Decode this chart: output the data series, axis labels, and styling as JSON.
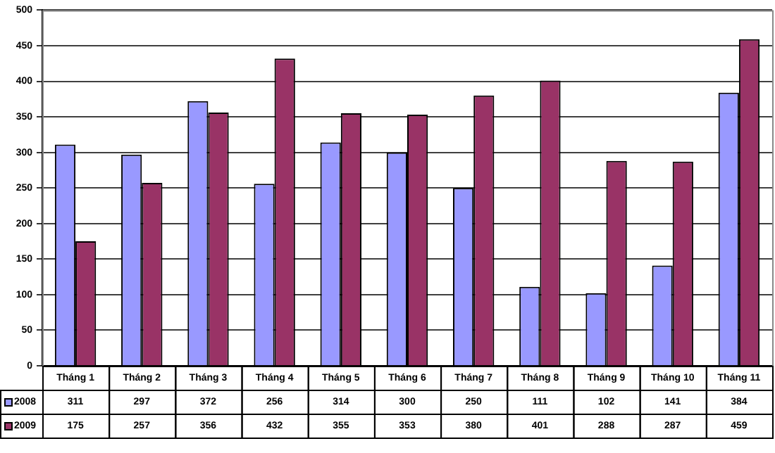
{
  "chart_data": {
    "type": "bar",
    "categories": [
      "Tháng 1",
      "Tháng 2",
      "Tháng 3",
      "Tháng 4",
      "Tháng 5",
      "Tháng 6",
      "Tháng 7",
      "Tháng 8",
      "Tháng 9",
      "Tháng 10",
      "Tháng 11"
    ],
    "series": [
      {
        "name": "2008",
        "color": "#9999ff",
        "values": [
          311,
          297,
          372,
          256,
          314,
          300,
          250,
          111,
          102,
          141,
          384
        ]
      },
      {
        "name": "2009",
        "color": "#993366",
        "values": [
          175,
          257,
          356,
          432,
          355,
          353,
          380,
          401,
          288,
          287,
          459
        ]
      }
    ],
    "ylim": [
      0,
      500
    ],
    "yticks": [
      0,
      50,
      100,
      150,
      200,
      250,
      300,
      350,
      400,
      450,
      500
    ],
    "grid": "y",
    "data_labels": true,
    "legend": "bottom left"
  }
}
